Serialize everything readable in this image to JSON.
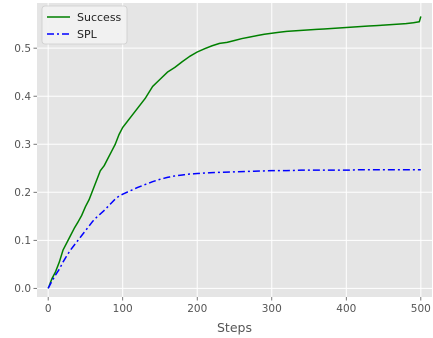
{
  "chart_data": {
    "type": "line",
    "xlabel": "Steps",
    "ylabel": "",
    "xlim": [
      -15,
      515
    ],
    "ylim": [
      -0.018,
      0.594
    ],
    "xticks": [
      0,
      100,
      200,
      300,
      400,
      500
    ],
    "yticks": [
      0.0,
      0.1,
      0.2,
      0.3,
      0.4,
      0.5
    ],
    "ytick_labels": [
      "0.0",
      "0.1",
      "0.2",
      "0.3",
      "0.4",
      "0.5"
    ],
    "grid": true,
    "legend_position": "top-left",
    "background": "#e5e5e5",
    "series": [
      {
        "name": "Success",
        "color": "#008000",
        "style": "solid",
        "x": [
          0,
          5,
          10,
          15,
          20,
          25,
          30,
          35,
          40,
          45,
          50,
          55,
          60,
          65,
          70,
          75,
          80,
          85,
          90,
          95,
          100,
          110,
          120,
          130,
          140,
          150,
          160,
          170,
          180,
          190,
          200,
          210,
          220,
          230,
          240,
          250,
          260,
          270,
          280,
          290,
          300,
          310,
          320,
          330,
          340,
          350,
          360,
          370,
          380,
          390,
          400,
          410,
          420,
          430,
          440,
          450,
          460,
          470,
          480,
          490,
          498,
          500
        ],
        "y": [
          0.0,
          0.02,
          0.035,
          0.055,
          0.08,
          0.095,
          0.11,
          0.125,
          0.138,
          0.152,
          0.17,
          0.185,
          0.205,
          0.225,
          0.245,
          0.255,
          0.27,
          0.285,
          0.3,
          0.32,
          0.335,
          0.355,
          0.375,
          0.395,
          0.42,
          0.435,
          0.45,
          0.46,
          0.472,
          0.483,
          0.492,
          0.499,
          0.505,
          0.51,
          0.512,
          0.516,
          0.52,
          0.523,
          0.526,
          0.529,
          0.531,
          0.533,
          0.535,
          0.536,
          0.537,
          0.538,
          0.539,
          0.54,
          0.541,
          0.542,
          0.543,
          0.544,
          0.545,
          0.546,
          0.547,
          0.548,
          0.549,
          0.55,
          0.551,
          0.553,
          0.555,
          0.566
        ]
      },
      {
        "name": "SPL",
        "color": "#0000ff",
        "style": "dashdot",
        "x": [
          0,
          5,
          10,
          15,
          20,
          25,
          30,
          35,
          40,
          45,
          50,
          55,
          60,
          65,
          70,
          75,
          80,
          85,
          90,
          95,
          100,
          110,
          120,
          130,
          140,
          150,
          160,
          170,
          180,
          190,
          200,
          220,
          240,
          260,
          280,
          300,
          320,
          340,
          360,
          380,
          400,
          420,
          440,
          460,
          480,
          500
        ],
        "y": [
          0.0,
          0.015,
          0.028,
          0.04,
          0.055,
          0.068,
          0.08,
          0.09,
          0.1,
          0.11,
          0.12,
          0.13,
          0.14,
          0.148,
          0.155,
          0.162,
          0.17,
          0.178,
          0.186,
          0.192,
          0.196,
          0.203,
          0.21,
          0.216,
          0.222,
          0.227,
          0.231,
          0.234,
          0.236,
          0.238,
          0.239,
          0.241,
          0.242,
          0.243,
          0.244,
          0.245,
          0.245,
          0.246,
          0.246,
          0.246,
          0.246,
          0.247,
          0.247,
          0.247,
          0.247,
          0.247
        ]
      }
    ]
  }
}
